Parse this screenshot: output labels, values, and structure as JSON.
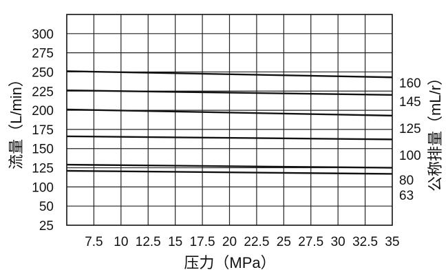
{
  "chart_data": {
    "type": "line",
    "title": "",
    "xlabel": "压力（MPa）",
    "ylabel": "流量（L/min）",
    "y2label": "公称排量（mL/r）",
    "xlim": [
      5,
      35
    ],
    "ylim": [
      25,
      300
    ],
    "x_ticks": [
      "7.5",
      "10",
      "12.5",
      "15",
      "17.5",
      "20",
      "22.5",
      "25",
      "27.5",
      "30",
      "32.5",
      "35"
    ],
    "y_ticks": [
      "25",
      "50",
      "100",
      "125",
      "150",
      "175",
      "200",
      "225",
      "250",
      "275",
      "300"
    ],
    "grid": true,
    "legend": "right",
    "line_color": "#111111",
    "series": [
      {
        "name": "160",
        "x": [
          5,
          35
        ],
        "y": [
          226,
          218
        ]
      },
      {
        "name": "145",
        "x": [
          5,
          35
        ],
        "y": [
          201,
          195
        ]
      },
      {
        "name": "125",
        "x": [
          5,
          35
        ],
        "y": [
          176,
          168
        ]
      },
      {
        "name": "100",
        "x": [
          5,
          35
        ],
        "y": [
          141,
          137
        ]
      },
      {
        "name": "80",
        "x": [
          5,
          35
        ],
        "y": [
          104,
          100
        ]
      },
      {
        "name": "63",
        "x": [
          5,
          35
        ],
        "y": [
          96,
          92
        ]
      }
    ]
  }
}
